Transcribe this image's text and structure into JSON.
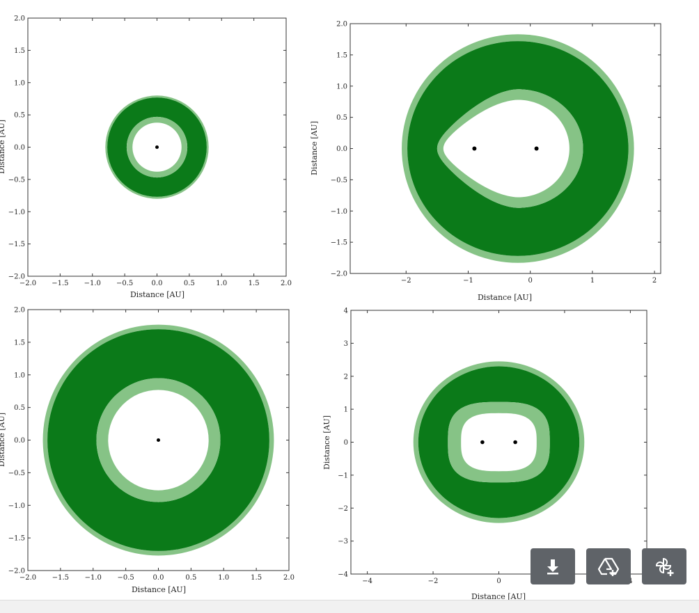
{
  "colors": {
    "dark_zone": "#0b7a19",
    "light_zone": "#86c386",
    "star": "#000000",
    "axes": "#333333",
    "background": "#ffffff",
    "toolbar": "#5f6368"
  },
  "toolbar": {
    "buttons": [
      {
        "name": "download-button",
        "icon": "download-icon"
      },
      {
        "name": "add-to-drive-button",
        "icon": "drive-add-icon"
      },
      {
        "name": "add-to-photos-button",
        "icon": "pinwheel-add-icon"
      }
    ]
  },
  "chart_data": [
    {
      "type": "area",
      "title": "",
      "xlabel": "Distance [AU]",
      "ylabel": "Distance [AU]",
      "xlim": [
        -2.0,
        2.0
      ],
      "ylim": [
        -2.0,
        2.0
      ],
      "xticks": [
        "−2.0",
        "−1.5",
        "−1.0",
        "−0.5",
        "0.0",
        "0.5",
        "1.0",
        "1.5",
        "2.0"
      ],
      "yticks": [
        "−2.0",
        "−1.5",
        "−1.0",
        "−0.5",
        "0.0",
        "0.5",
        "1.0",
        "1.5",
        "2.0"
      ],
      "stars": [
        {
          "x": 0.0,
          "y": 0.0
        }
      ],
      "zones": {
        "inner_light": 0.47,
        "inner_dark": 0.38,
        "outer_dark": 0.77,
        "outer_light": 0.8
      }
    },
    {
      "type": "area",
      "title": "",
      "xlabel": "Distance [AU]",
      "ylabel": "Distance [AU]",
      "xlim": [
        -2.9,
        2.1
      ],
      "ylim": [
        -2.0,
        2.0
      ],
      "xticks": [
        "−2",
        "−1",
        "0",
        "1",
        "2"
      ],
      "yticks": [
        "−2.0",
        "−1.5",
        "−1.0",
        "−0.5",
        "0.0",
        "0.5",
        "1.0",
        "1.5",
        "2.0"
      ],
      "stars": [
        {
          "x": -0.9,
          "y": 0.0
        },
        {
          "x": 0.1,
          "y": 0.0
        }
      ],
      "zones": {
        "center": [
          -0.2,
          0.0
        ],
        "outer_light": [
          1.87,
          1.83
        ],
        "outer_dark": [
          1.78,
          1.72
        ],
        "inner_light_right": 1.05,
        "inner_light_left": 1.3,
        "inner_light_vr": 0.95,
        "inner_dark_right": 0.83,
        "inner_dark_left": 1.2,
        "inner_dark_vr": 0.78
      }
    },
    {
      "type": "area",
      "title": "",
      "xlabel": "Distance [AU]",
      "ylabel": "Distance [AU]",
      "xlim": [
        -2.0,
        2.0
      ],
      "ylim": [
        -2.0,
        2.0
      ],
      "xticks": [
        "−2.0",
        "−1.5",
        "−1.0",
        "−0.5",
        "0.0",
        "0.5",
        "1.0",
        "1.5",
        "2.0"
      ],
      "yticks": [
        "−2.0",
        "−1.5",
        "−1.0",
        "−0.5",
        "0.0",
        "0.5",
        "1.0",
        "1.5",
        "2.0"
      ],
      "stars": [
        {
          "x": 0.0,
          "y": 0.0
        }
      ],
      "zones": {
        "inner_light": 0.95,
        "inner_dark": 0.77,
        "outer_dark": 1.7,
        "outer_light": 1.77
      }
    },
    {
      "type": "area",
      "title": "",
      "xlabel": "Distance [AU]",
      "ylabel": "Distance [AU]",
      "xlim": [
        -4.5,
        4.5
      ],
      "ylim": [
        -4.0,
        4.0
      ],
      "xticks": [
        "−4",
        "−2",
        "0",
        "2",
        "4"
      ],
      "yticks": [
        "−4",
        "−3",
        "−2",
        "−1",
        "0",
        "1",
        "2",
        "3",
        "4"
      ],
      "stars": [
        {
          "x": -0.5,
          "y": 0.0
        },
        {
          "x": 0.5,
          "y": 0.0
        }
      ],
      "zones": {
        "outer_light": [
          2.6,
          2.45
        ],
        "outer_dark": [
          2.45,
          2.3
        ],
        "inner_light": [
          1.55,
          1.22
        ],
        "inner_dark": [
          1.15,
          0.88
        ]
      }
    }
  ]
}
